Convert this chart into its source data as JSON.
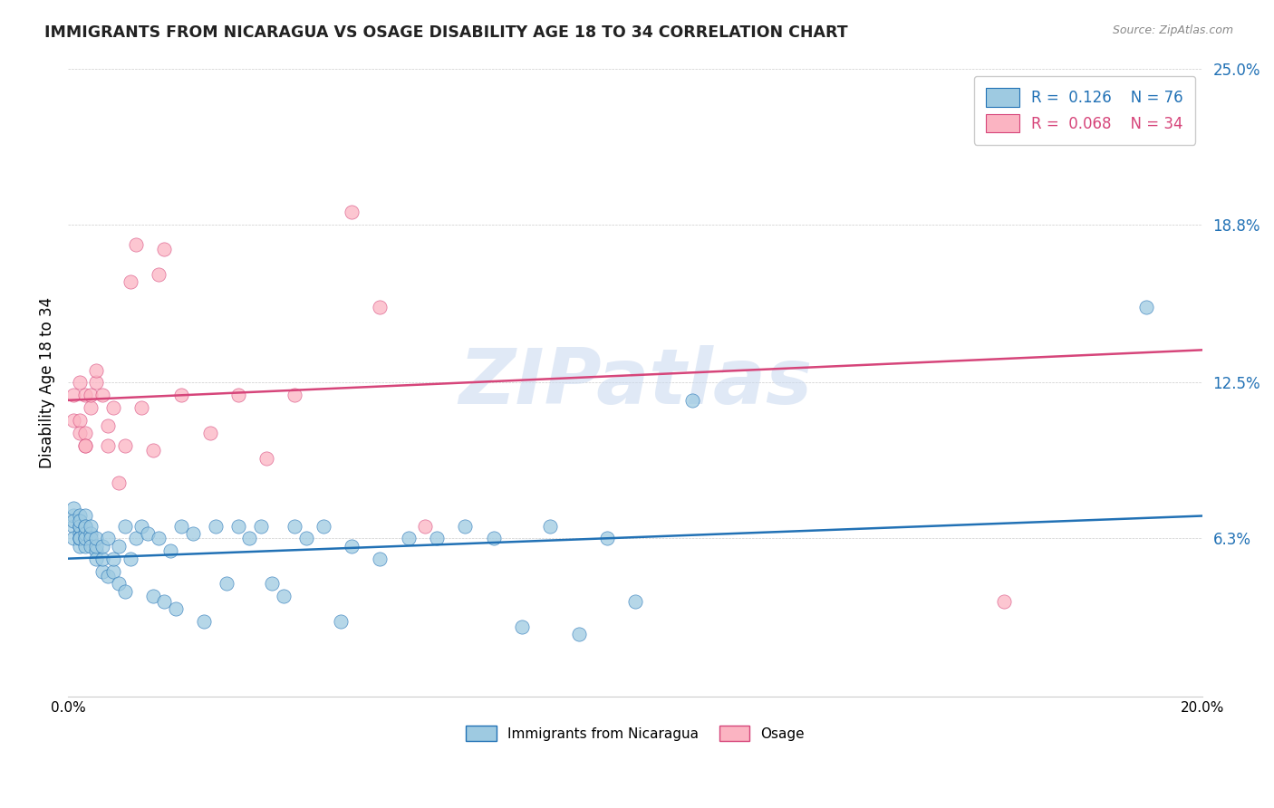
{
  "title": "IMMIGRANTS FROM NICARAGUA VS OSAGE DISABILITY AGE 18 TO 34 CORRELATION CHART",
  "source": "Source: ZipAtlas.com",
  "ylabel": "Disability Age 18 to 34",
  "xmin": 0.0,
  "xmax": 0.2,
  "ymin": 0.0,
  "ymax": 0.25,
  "yticks": [
    0.063,
    0.125,
    0.188,
    0.25
  ],
  "ytick_labels": [
    "6.3%",
    "12.5%",
    "18.8%",
    "25.0%"
  ],
  "xticks": [
    0.0,
    0.05,
    0.1,
    0.15,
    0.2
  ],
  "xtick_labels": [
    "0.0%",
    "",
    "",
    "",
    "20.0%"
  ],
  "watermark": "ZIPatlas",
  "color_blue": "#9ecae1",
  "color_pink": "#fbb4c2",
  "line_color_blue": "#2171b5",
  "line_color_pink": "#d6457a",
  "title_color": "#222222",
  "source_color": "#888888",
  "ytick_color": "#2171b5",
  "blue_line_start_y": 0.055,
  "blue_line_end_y": 0.072,
  "pink_line_start_y": 0.118,
  "pink_line_end_y": 0.138,
  "blue_x": [
    0.001,
    0.001,
    0.001,
    0.001,
    0.001,
    0.002,
    0.002,
    0.002,
    0.002,
    0.002,
    0.002,
    0.002,
    0.002,
    0.002,
    0.003,
    0.003,
    0.003,
    0.003,
    0.003,
    0.003,
    0.003,
    0.004,
    0.004,
    0.004,
    0.004,
    0.005,
    0.005,
    0.005,
    0.005,
    0.006,
    0.006,
    0.006,
    0.007,
    0.007,
    0.008,
    0.008,
    0.009,
    0.009,
    0.01,
    0.01,
    0.011,
    0.012,
    0.013,
    0.014,
    0.015,
    0.016,
    0.017,
    0.018,
    0.019,
    0.02,
    0.022,
    0.024,
    0.026,
    0.028,
    0.03,
    0.032,
    0.034,
    0.036,
    0.038,
    0.04,
    0.042,
    0.045,
    0.048,
    0.05,
    0.055,
    0.06,
    0.065,
    0.07,
    0.075,
    0.08,
    0.085,
    0.09,
    0.095,
    0.1,
    0.11,
    0.19
  ],
  "blue_y": [
    0.068,
    0.072,
    0.075,
    0.063,
    0.07,
    0.068,
    0.072,
    0.065,
    0.063,
    0.06,
    0.063,
    0.068,
    0.07,
    0.063,
    0.068,
    0.072,
    0.063,
    0.065,
    0.06,
    0.063,
    0.068,
    0.065,
    0.063,
    0.06,
    0.068,
    0.058,
    0.055,
    0.06,
    0.063,
    0.05,
    0.055,
    0.06,
    0.048,
    0.063,
    0.05,
    0.055,
    0.045,
    0.06,
    0.042,
    0.068,
    0.055,
    0.063,
    0.068,
    0.065,
    0.04,
    0.063,
    0.038,
    0.058,
    0.035,
    0.068,
    0.065,
    0.03,
    0.068,
    0.045,
    0.068,
    0.063,
    0.068,
    0.045,
    0.04,
    0.068,
    0.063,
    0.068,
    0.03,
    0.06,
    0.055,
    0.063,
    0.063,
    0.068,
    0.063,
    0.028,
    0.068,
    0.025,
    0.063,
    0.038,
    0.118,
    0.155
  ],
  "pink_x": [
    0.001,
    0.001,
    0.002,
    0.002,
    0.002,
    0.003,
    0.003,
    0.003,
    0.003,
    0.004,
    0.004,
    0.005,
    0.005,
    0.006,
    0.007,
    0.007,
    0.008,
    0.009,
    0.01,
    0.011,
    0.012,
    0.013,
    0.015,
    0.016,
    0.017,
    0.02,
    0.025,
    0.03,
    0.035,
    0.04,
    0.05,
    0.055,
    0.063,
    0.165
  ],
  "pink_y": [
    0.12,
    0.11,
    0.125,
    0.11,
    0.105,
    0.105,
    0.1,
    0.12,
    0.1,
    0.115,
    0.12,
    0.125,
    0.13,
    0.12,
    0.1,
    0.108,
    0.115,
    0.085,
    0.1,
    0.165,
    0.18,
    0.115,
    0.098,
    0.168,
    0.178,
    0.12,
    0.105,
    0.12,
    0.095,
    0.12,
    0.193,
    0.155,
    0.068,
    0.038
  ]
}
